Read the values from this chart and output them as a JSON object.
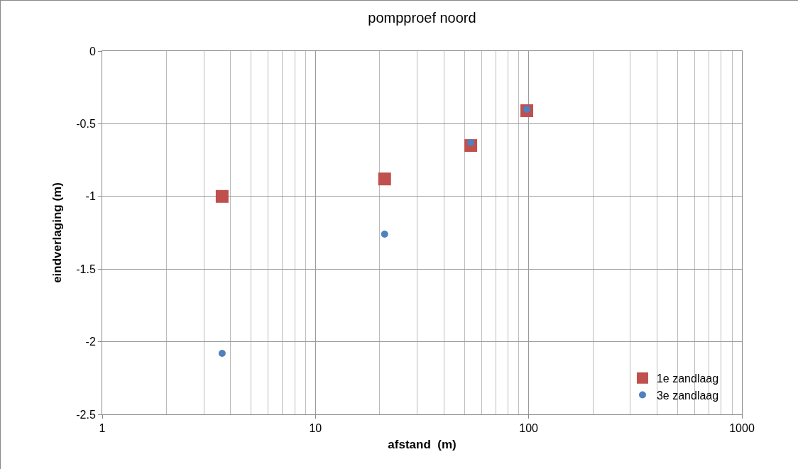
{
  "chart_data": {
    "type": "scatter",
    "title": "pompproef noord",
    "xlabel": "afstand  (m)",
    "ylabel": "eindverlaging (m)",
    "log": "x",
    "xlim": [
      1,
      1000
    ],
    "xticks": [
      1,
      10,
      100,
      1000
    ],
    "ylim": [
      -2.5,
      0
    ],
    "yticks": [
      -2.5,
      -2,
      -1.5,
      -1,
      -0.5,
      0
    ],
    "grid": true,
    "legend": "bottom right",
    "series": [
      {
        "name": "1e zandlaag",
        "color": "#c0504d",
        "marker": "square",
        "x": [
          3.65,
          21.1,
          53.5,
          98
        ],
        "values": [
          -1.0,
          -0.88,
          -0.65,
          -0.41
        ]
      },
      {
        "name": "3e zandlaag",
        "color": "#4f81bd",
        "marker": "circle",
        "x": [
          3.65,
          21.1,
          53.5,
          98
        ],
        "values": [
          -2.08,
          -1.26,
          -0.63,
          -0.4
        ]
      }
    ]
  }
}
